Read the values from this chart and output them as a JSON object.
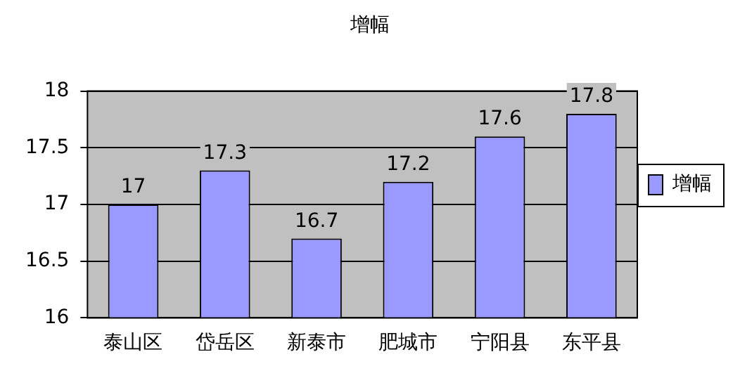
{
  "chart_data": {
    "type": "bar",
    "title": "增幅",
    "categories": [
      "泰山区",
      "岱岳区",
      "新泰市",
      "肥城市",
      "宁阳县",
      "东平县"
    ],
    "series": [
      {
        "name": "增幅",
        "color": "#9999ff",
        "values": [
          17,
          17.3,
          16.7,
          17.2,
          17.6,
          17.8
        ]
      }
    ],
    "ylim": [
      16,
      18
    ],
    "yticks": [
      16,
      16.5,
      17,
      17.5,
      18
    ],
    "grid": "y",
    "legend": "right",
    "data_labels": true
  }
}
